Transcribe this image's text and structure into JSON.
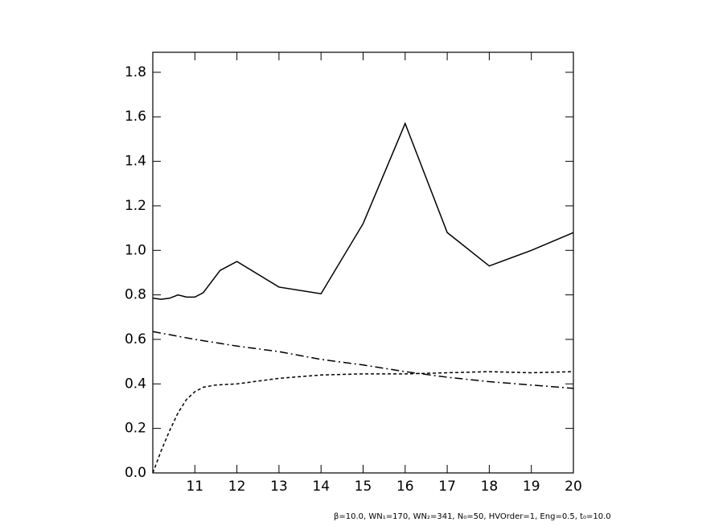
{
  "chart_data": {
    "type": "line",
    "annotation": "β=10.0, WN₁=170, WN₂=341, N₀=50, HVOrder=1, Eng=0.5, t₀=10.0",
    "xlim": [
      10,
      20
    ],
    "xticks": [
      11,
      12,
      13,
      14,
      15,
      16,
      17,
      18,
      19,
      20
    ],
    "ylim": [
      0,
      1.89
    ],
    "yticks": [
      {
        "value": 0,
        "label": "0.0"
      },
      0.2,
      0.4,
      0.6,
      0.8,
      {
        "value": 1,
        "label": "1.0"
      },
      1.2,
      1.4,
      1.6,
      1.8
    ],
    "series": [
      {
        "color": "#000000",
        "dash": "solid",
        "x": [
          10,
          10.2,
          10.4,
          10.6,
          10.8,
          11,
          11.2,
          11.4,
          11.6,
          11.8,
          12,
          13,
          14,
          15,
          16,
          17,
          18,
          19,
          20
        ],
        "values": [
          0.785,
          0.78,
          0.785,
          0.8,
          0.79,
          0.79,
          0.81,
          0.86,
          0.91,
          0.93,
          0.95,
          0.835,
          0.805,
          1.12,
          1.57,
          1.08,
          0.93,
          1.0,
          1.08
        ]
      },
      {
        "color": "#000000",
        "dash": "dashdot",
        "x": [
          10,
          11,
          12,
          13,
          14,
          15,
          16,
          17,
          18,
          19,
          20
        ],
        "values": [
          0.635,
          0.6,
          0.57,
          0.545,
          0.51,
          0.485,
          0.455,
          0.43,
          0.41,
          0.395,
          0.38
        ]
      },
      {
        "color": "#000000",
        "dash": "dashed",
        "x": [
          10,
          10.2,
          10.4,
          10.6,
          10.8,
          11,
          11.2,
          11.5,
          12,
          13,
          14,
          15,
          16,
          17,
          18,
          19,
          20
        ],
        "values": [
          0,
          0.1,
          0.19,
          0.27,
          0.33,
          0.365,
          0.385,
          0.395,
          0.4,
          0.425,
          0.44,
          0.445,
          0.445,
          0.45,
          0.455,
          0.45,
          0.455
        ]
      }
    ]
  }
}
